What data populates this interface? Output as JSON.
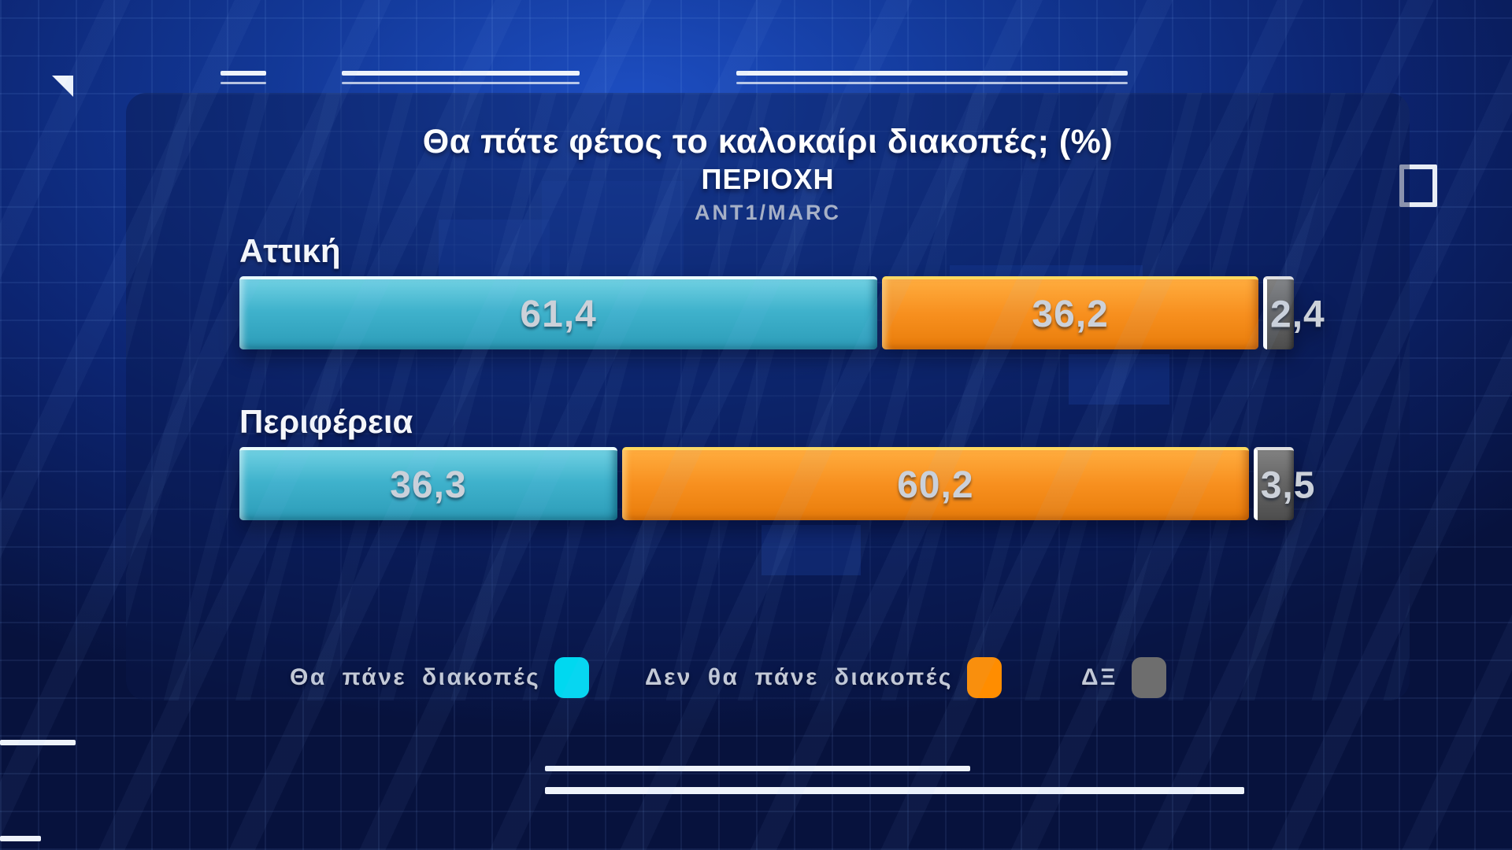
{
  "header": {
    "title": "Θα πάτε φέτος το καλοκαίρι διακοπές; (%)",
    "subtitle": "ΠΕΡΙΟΧΗ",
    "source": "ANT1/MARC"
  },
  "chart_data": {
    "type": "bar",
    "orientation": "horizontal",
    "stacked": true,
    "unit": "%",
    "title": "Θα πάτε φέτος το καλοκαίρι διακοπές; (%)",
    "subtitle": "ΠΕΡΙΟΧΗ",
    "source": "ANT1/MARC",
    "xlim": [
      0,
      100
    ],
    "categories": [
      "Αττική",
      "Περιφέρεια"
    ],
    "series": [
      {
        "name": "Θα πάνε διακοπές",
        "color": "#3fb2cc",
        "values": [
          61.4,
          36.3
        ]
      },
      {
        "name": "Δεν θα πάνε διακοπές",
        "color": "#f78f1e",
        "values": [
          36.2,
          60.2
        ]
      },
      {
        "name": "ΔΞ",
        "color": "#666666",
        "values": [
          2.4,
          3.5
        ]
      }
    ],
    "rows": [
      {
        "label": "Αττική",
        "segments": [
          {
            "name": "Θα πάνε διακοπές",
            "value": 61.4,
            "display": "61,4"
          },
          {
            "name": "Δεν θα πάνε διακοπές",
            "value": 36.2,
            "display": "36,2"
          },
          {
            "name": "ΔΞ",
            "value": 2.4,
            "display": "2,4"
          }
        ]
      },
      {
        "label": "Περιφέρεια",
        "segments": [
          {
            "name": "Θα πάνε διακοπές",
            "value": 36.3,
            "display": "36,3"
          },
          {
            "name": "Δεν θα πάνε διακοπές",
            "value": 60.2,
            "display": "60,2"
          },
          {
            "name": "ΔΞ",
            "value": 3.5,
            "display": "3,5"
          }
        ]
      }
    ],
    "legend": [
      {
        "label": "Θα πάνε διακοπές",
        "color": "#00d8f0"
      },
      {
        "label": "Δεν θα πάνε διακοπές",
        "color": "#ff8d00"
      },
      {
        "label": "ΔΞ",
        "color": "#6e6e6e"
      }
    ],
    "legend_position": "bottom"
  },
  "colors": {
    "background_navy": "#0c2470",
    "panel_navy": "#13306f",
    "accent_cyan": "#3fb2cc",
    "accent_orange": "#f78f1e",
    "neutral_gray": "#666666",
    "value_text_silver": "#ccd1d9",
    "label_white": "#f4f6fa",
    "decoration_white": "#eef3fb"
  }
}
